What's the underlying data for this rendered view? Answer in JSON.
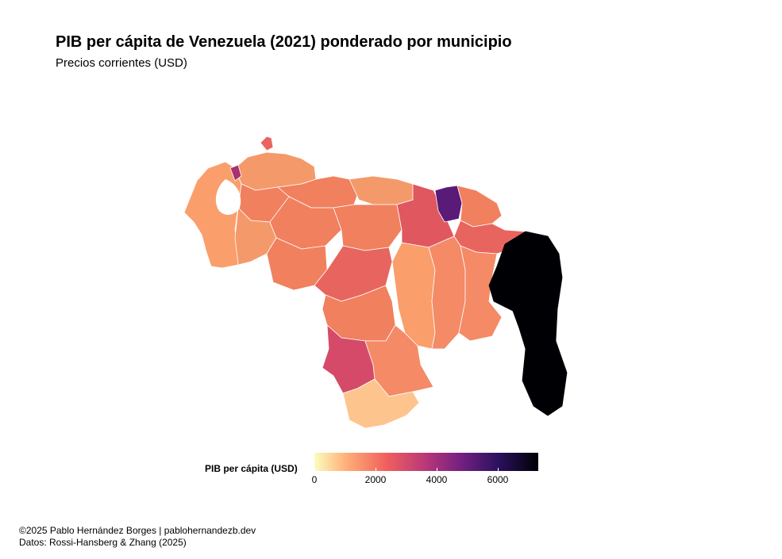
{
  "title": "PIB per cápita de Venezuela (2021) ponderado por municipio",
  "subtitle": "Precios corrientes (USD)",
  "legend": {
    "title": "PIB per cápita (USD)",
    "ticks": [
      "0",
      "2000",
      "4000",
      "6000"
    ],
    "scale": "magma (reversed)",
    "min": 0,
    "max": 7300
  },
  "caption": {
    "line1": "©2025 Pablo Hernández Borges | pablohernandezb.dev",
    "line2": "Datos: Rossi-Hansberg & Zhang (2025)"
  },
  "colors": {
    "low": "#fcfdbf",
    "light_orange": "#feb078",
    "orange": "#fa9e6c",
    "salmon": "#f1805e",
    "coral": "#e8655f",
    "rose": "#d54a68",
    "magenta": "#a8326e",
    "purple": "#5a1a78",
    "high": "#000004",
    "border": "#ffffff"
  }
}
